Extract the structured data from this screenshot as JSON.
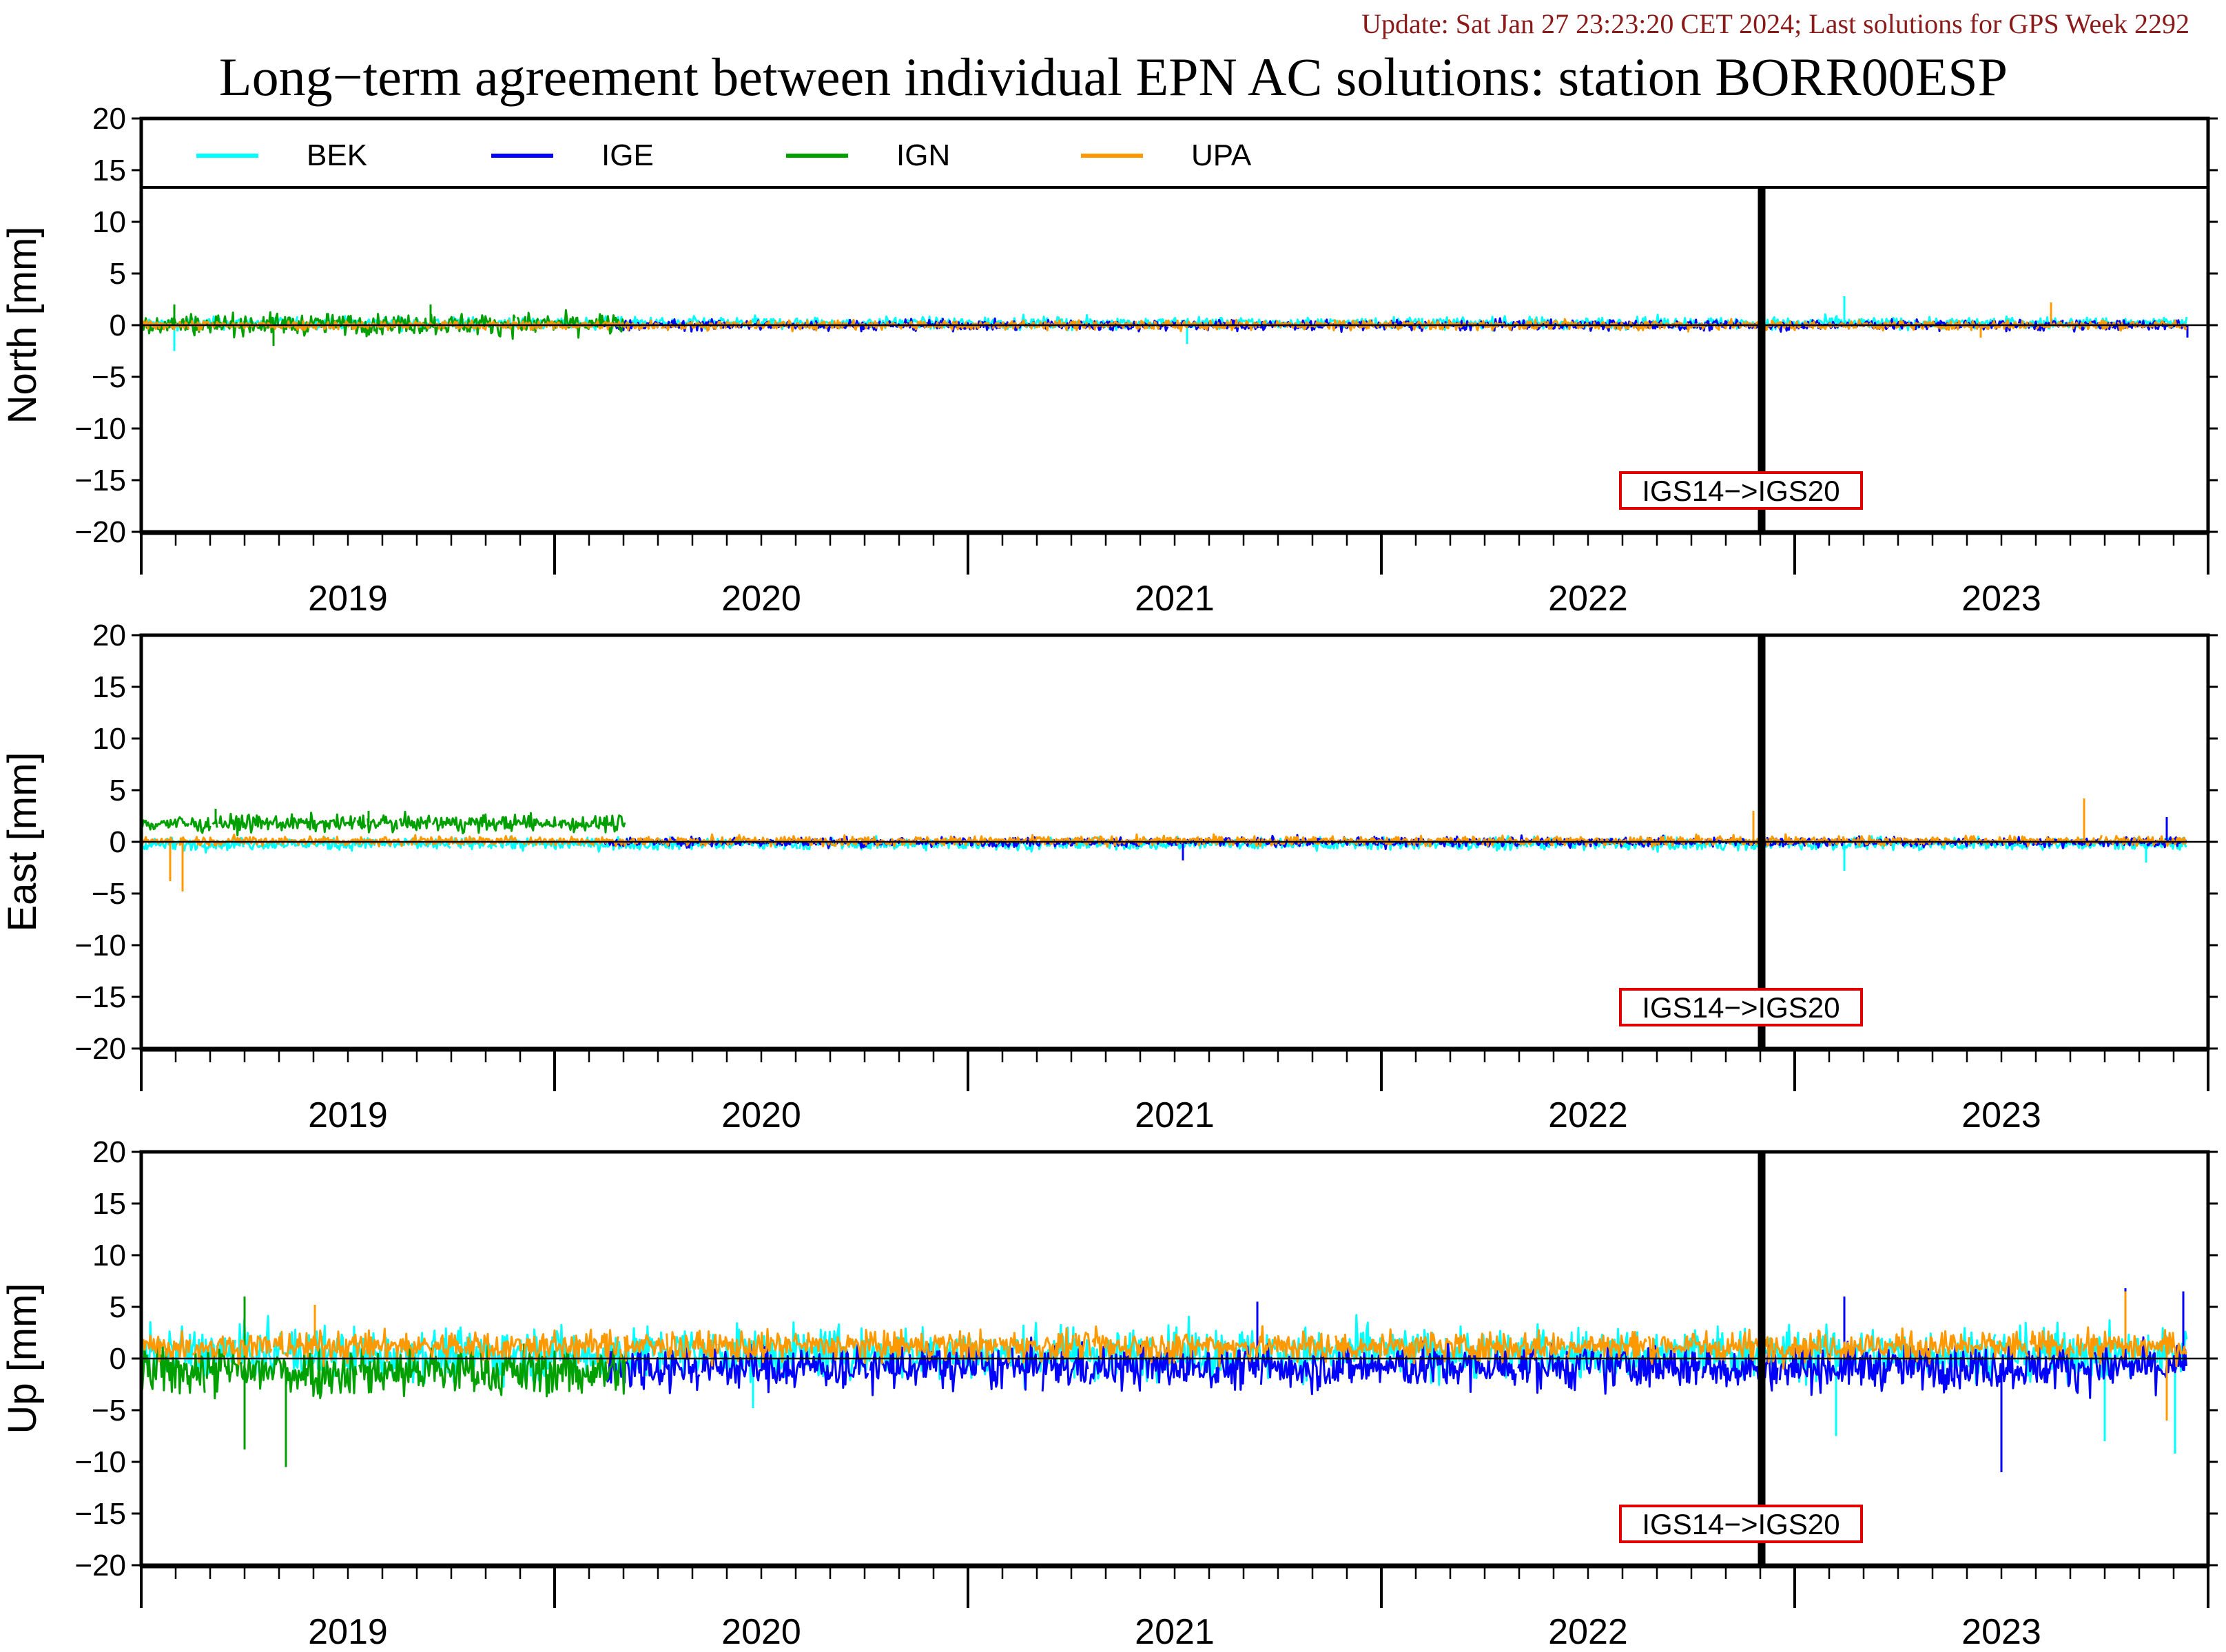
{
  "header": {
    "update": "Update: Sat Jan 27 23:23:20 CET 2024; Last solutions for GPS Week 2292"
  },
  "chart_data": [
    {
      "type": "line",
      "panel": "north",
      "title": "Long−term agreement between individual EPN AC solutions: station BORR00ESP",
      "xlabel": "",
      "ylabel": "North [mm]",
      "xlim": [
        2018.5,
        2023.5
      ],
      "ylim": [
        -20,
        20
      ],
      "yticks": [
        20,
        15,
        10,
        5,
        0,
        -5,
        -10,
        -15,
        -20
      ],
      "ytick_labels": [
        "20",
        "15",
        "10",
        "5",
        "0",
        "−5",
        "−10",
        "−15",
        "−20"
      ],
      "year_labels": [
        "2019",
        "2020",
        "2021",
        "2022",
        "2023"
      ],
      "grid": false,
      "legend": {
        "placement": "top",
        "entries": [
          "BEK",
          "IGE",
          "IGN",
          "UPA"
        ]
      },
      "annotation": {
        "text": "IGS14−>IGS20",
        "x": 2022.42
      },
      "series": [
        {
          "name": "BEK",
          "color": "#00ffff",
          "x_start": 2018.5,
          "x_end": 2023.45,
          "mean": 0.2,
          "spread": 0.5,
          "spikes": [
            [
              2018.58,
              -2.5
            ],
            [
              2022.62,
              2.8
            ],
            [
              2021.03,
              -1.8
            ]
          ]
        },
        {
          "name": "IGE",
          "color": "#0000ff",
          "x_start": 2019.62,
          "x_end": 2023.45,
          "mean": 0.0,
          "spread": 0.45,
          "spikes": [
            [
              2023.45,
              -1.2
            ]
          ]
        },
        {
          "name": "IGN",
          "color": "#00a000",
          "x_start": 2018.5,
          "x_end": 2019.67,
          "mean": 0.1,
          "spread": 0.9,
          "spikes": [
            [
              2018.58,
              2.0
            ],
            [
              2019.2,
              2.0
            ],
            [
              2018.82,
              -2.0
            ]
          ]
        },
        {
          "name": "UPA",
          "color": "#ff9900",
          "x_start": 2018.5,
          "x_end": 2023.45,
          "mean": 0.0,
          "spread": 0.4,
          "spikes": [
            [
              2023.12,
              2.2
            ],
            [
              2022.95,
              -1.2
            ]
          ]
        }
      ]
    },
    {
      "type": "line",
      "panel": "east",
      "xlabel": "",
      "ylabel": "East [mm]",
      "xlim": [
        2018.5,
        2023.5
      ],
      "ylim": [
        -20,
        20
      ],
      "yticks": [
        20,
        15,
        10,
        5,
        0,
        -5,
        -10,
        -15,
        -20
      ],
      "ytick_labels": [
        "20",
        "15",
        "10",
        "5",
        "0",
        "−5",
        "−10",
        "−15",
        "−20"
      ],
      "year_labels": [
        "2019",
        "2020",
        "2021",
        "2022",
        "2023"
      ],
      "grid": false,
      "annotation": {
        "text": "IGS14−>IGS20",
        "x": 2022.42
      },
      "series": [
        {
          "name": "BEK",
          "color": "#00ffff",
          "x_start": 2018.5,
          "x_end": 2023.45,
          "mean": -0.2,
          "spread": 0.5,
          "spikes": [
            [
              2022.62,
              -2.8
            ],
            [
              2023.35,
              -2.0
            ]
          ]
        },
        {
          "name": "IGE",
          "color": "#0000ff",
          "x_start": 2019.62,
          "x_end": 2023.45,
          "mean": 0.0,
          "spread": 0.4,
          "spikes": [
            [
              2021.02,
              -1.8
            ],
            [
              2023.4,
              2.4
            ]
          ]
        },
        {
          "name": "IGN",
          "color": "#00a000",
          "x_start": 2018.5,
          "x_end": 2019.67,
          "mean": 1.8,
          "spread": 0.7,
          "spikes": [
            [
              2018.68,
              3.2
            ],
            [
              2019.05,
              3.0
            ]
          ]
        },
        {
          "name": "UPA",
          "color": "#ff9900",
          "x_start": 2018.5,
          "x_end": 2023.45,
          "mean": 0.1,
          "spread": 0.4,
          "spikes": [
            [
              2018.6,
              -4.8
            ],
            [
              2018.57,
              -3.8
            ],
            [
              2023.2,
              4.2
            ],
            [
              2022.4,
              3.0
            ]
          ]
        }
      ]
    },
    {
      "type": "line",
      "panel": "up",
      "xlabel": "",
      "ylabel": "Up [mm]",
      "xlim": [
        2018.5,
        2023.5
      ],
      "ylim": [
        -20,
        20
      ],
      "yticks": [
        20,
        15,
        10,
        5,
        0,
        -5,
        -10,
        -15,
        -20
      ],
      "ytick_labels": [
        "20",
        "15",
        "10",
        "5",
        "0",
        "−5",
        "−10",
        "−15",
        "−20"
      ],
      "year_labels": [
        "2019",
        "2020",
        "2021",
        "2022",
        "2023"
      ],
      "grid": false,
      "annotation": {
        "text": "IGS14−>IGS20",
        "x": 2022.42
      },
      "series": [
        {
          "name": "BEK",
          "color": "#00ffff",
          "x_start": 2018.5,
          "x_end": 2023.45,
          "mean": 0.5,
          "spread": 2.2,
          "spikes": [
            [
              2019.98,
              -4.8
            ],
            [
              2023.42,
              -9.2
            ],
            [
              2022.6,
              -7.5
            ],
            [
              2023.25,
              -8.0
            ]
          ]
        },
        {
          "name": "IGE",
          "color": "#0000ff",
          "x_start": 2019.62,
          "x_end": 2023.45,
          "mean": -0.8,
          "spread": 1.9,
          "spikes": [
            [
              2022.62,
              6.0
            ],
            [
              2023.0,
              -11.0
            ],
            [
              2023.3,
              6.8
            ],
            [
              2023.44,
              6.5
            ],
            [
              2021.2,
              5.5
            ]
          ]
        },
        {
          "name": "IGN",
          "color": "#00a000",
          "x_start": 2018.5,
          "x_end": 2019.67,
          "mean": -1.2,
          "spread": 2.2,
          "spikes": [
            [
              2018.85,
              -10.5
            ],
            [
              2018.75,
              -8.8
            ],
            [
              2018.75,
              6.0
            ]
          ]
        },
        {
          "name": "UPA",
          "color": "#ff9900",
          "x_start": 2018.5,
          "x_end": 2023.45,
          "mean": 1.2,
          "spread": 1.3,
          "spikes": [
            [
              2018.92,
              5.2
            ],
            [
              2023.3,
              6.5
            ],
            [
              2023.4,
              -6.0
            ]
          ]
        }
      ]
    }
  ]
}
